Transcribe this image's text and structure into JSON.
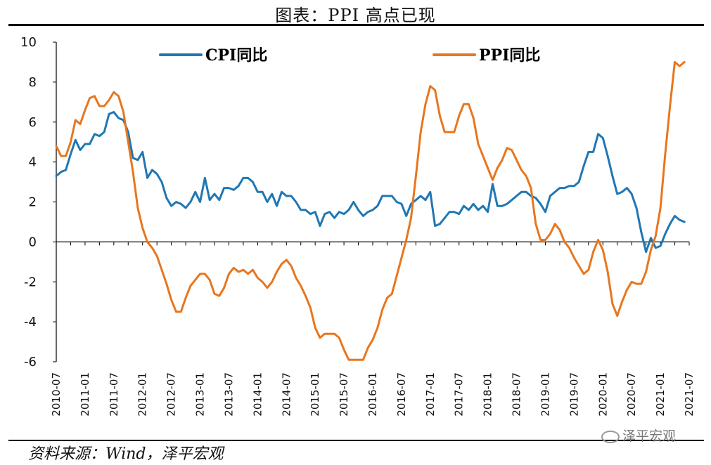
{
  "title": "图表：PPI 高点已现",
  "source": "资料来源：Wind，泽平宏观",
  "watermark": "泽平宏观",
  "colors": {
    "cpi": "#1F77B4",
    "ppi": "#E8761E",
    "axis": "#000000"
  },
  "chart_data": {
    "type": "line",
    "title": "图表：PPI 高点已现",
    "xlabel": "",
    "ylabel": "",
    "ylim": [
      -6,
      10
    ],
    "yticks": [
      10,
      8,
      6,
      4,
      2,
      0,
      -2,
      -4,
      -6
    ],
    "ytick_labels": [
      "10",
      "8",
      "6",
      "4",
      "2",
      "0",
      "-2",
      "-4",
      "-6"
    ],
    "x_range": [
      "2010-07",
      "2021-07"
    ],
    "xtick_labels": [
      "2010-07",
      "2011-01",
      "2011-07",
      "2012-01",
      "2012-07",
      "2013-01",
      "2013-07",
      "2014-01",
      "2014-07",
      "2015-01",
      "2015-07",
      "2016-01",
      "2016-07",
      "2017-01",
      "2017-07",
      "2018-01",
      "2018-07",
      "2019-01",
      "2019-07",
      "2020-01",
      "2020-07",
      "2021-01",
      "2021-07"
    ],
    "legend_position": "top",
    "series": [
      {
        "name": "CPI同比",
        "key": "cpi",
        "values": [
          3.3,
          3.5,
          3.6,
          4.4,
          5.1,
          4.6,
          4.9,
          4.9,
          5.4,
          5.3,
          5.5,
          6.4,
          6.5,
          6.2,
          6.1,
          5.5,
          4.2,
          4.1,
          4.5,
          3.2,
          3.6,
          3.4,
          3.0,
          2.2,
          1.8,
          2.0,
          1.9,
          1.7,
          2.0,
          2.5,
          2.0,
          3.2,
          2.1,
          2.4,
          2.1,
          2.7,
          2.7,
          2.6,
          2.8,
          3.2,
          3.2,
          3.0,
          2.5,
          2.5,
          2.0,
          2.4,
          1.8,
          2.5,
          2.3,
          2.3,
          2.0,
          1.6,
          1.6,
          1.4,
          1.5,
          0.8,
          1.4,
          1.5,
          1.2,
          1.5,
          1.4,
          1.6,
          2.0,
          1.6,
          1.3,
          1.5,
          1.6,
          1.8,
          2.3,
          2.3,
          2.3,
          2.0,
          1.9,
          1.3,
          1.9,
          2.1,
          2.3,
          2.1,
          2.5,
          0.8,
          0.9,
          1.2,
          1.5,
          1.5,
          1.4,
          1.8,
          1.6,
          1.9,
          1.6,
          1.8,
          1.5,
          2.9,
          1.8,
          1.8,
          1.9,
          2.1,
          2.3,
          2.5,
          2.5,
          2.3,
          2.2,
          1.9,
          1.5,
          2.3,
          2.5,
          2.7,
          2.7,
          2.8,
          2.8,
          3.0,
          3.8,
          4.5,
          4.5,
          5.4,
          5.2,
          4.3,
          3.3,
          2.4,
          2.5,
          2.7,
          2.4,
          1.7,
          0.5,
          -0.5,
          0.2,
          -0.3,
          -0.2,
          0.4,
          0.9,
          1.3,
          1.1,
          1.0
        ]
      },
      {
        "name": "PPI同比",
        "key": "ppi",
        "values": [
          4.8,
          4.3,
          4.3,
          5.0,
          6.1,
          5.9,
          6.6,
          7.2,
          7.3,
          6.8,
          6.8,
          7.1,
          7.5,
          7.3,
          6.5,
          5.0,
          3.5,
          1.7,
          0.7,
          0.0,
          -0.3,
          -0.7,
          -1.4,
          -2.1,
          -2.9,
          -3.5,
          -3.5,
          -2.8,
          -2.2,
          -1.9,
          -1.6,
          -1.6,
          -1.9,
          -2.6,
          -2.7,
          -2.3,
          -1.6,
          -1.3,
          -1.5,
          -1.4,
          -1.6,
          -1.4,
          -1.8,
          -2.0,
          -2.3,
          -2.0,
          -1.5,
          -1.1,
          -0.9,
          -1.2,
          -1.8,
          -2.2,
          -2.7,
          -3.3,
          -4.3,
          -4.8,
          -4.6,
          -4.6,
          -4.6,
          -4.8,
          -5.4,
          -5.9,
          -5.9,
          -5.9,
          -5.9,
          -5.3,
          -4.9,
          -4.3,
          -3.4,
          -2.8,
          -2.6,
          -1.7,
          -0.8,
          0.1,
          1.2,
          3.3,
          5.5,
          6.9,
          7.8,
          7.6,
          6.3,
          5.5,
          5.5,
          5.5,
          6.3,
          6.9,
          6.9,
          6.2,
          4.9,
          4.3,
          3.7,
          3.1,
          3.7,
          4.1,
          4.7,
          4.6,
          4.1,
          3.6,
          3.3,
          2.7,
          0.9,
          0.1,
          0.1,
          0.4,
          0.9,
          0.6,
          0.0,
          -0.3,
          -0.8,
          -1.2,
          -1.6,
          -1.4,
          -0.5,
          0.1,
          -0.4,
          -1.5,
          -3.1,
          -3.7,
          -3.0,
          -2.4,
          -2.0,
          -2.1,
          -2.1,
          -1.5,
          -0.4,
          0.3,
          1.7,
          4.4,
          6.8,
          9.0,
          8.8,
          9.0
        ]
      }
    ]
  }
}
